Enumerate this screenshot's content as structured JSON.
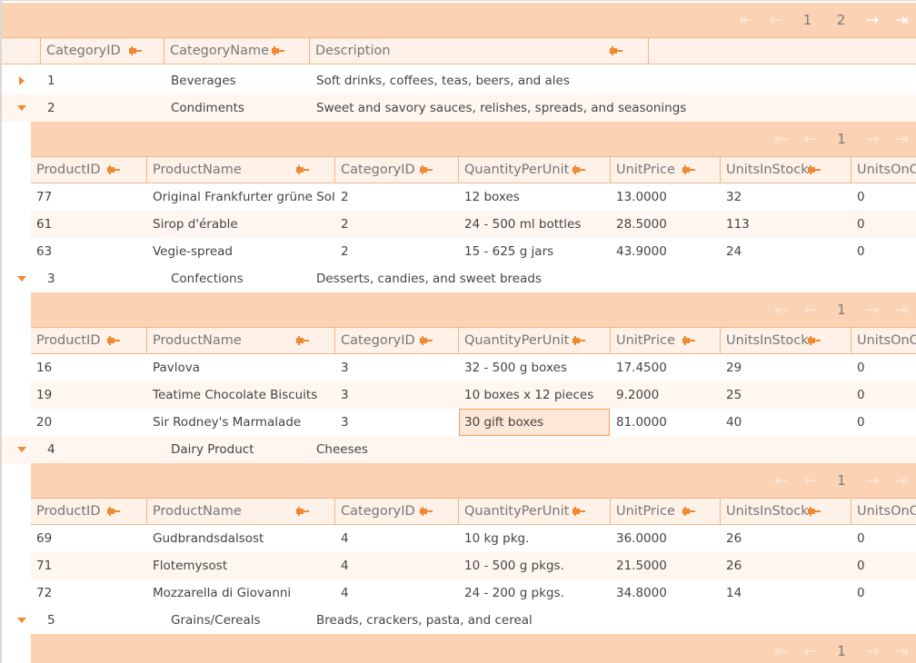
{
  "main_pager": {
    "pages": [
      "1",
      "2"
    ]
  },
  "master_headers": [
    "CategoryID",
    "CategoryName",
    "Description"
  ],
  "master_rows": [
    {
      "id": "1",
      "name": "Beverages",
      "description": "Soft drinks, coffees, teas, beers, and ales",
      "expanded": false
    },
    {
      "id": "2",
      "name": "Condiments",
      "description": "Sweet and savory sauces, relishes, spreads, and seasonings",
      "expanded": true
    },
    {
      "id": "3",
      "name": "Confections",
      "description": "Desserts, candies, and sweet breads",
      "expanded": true
    },
    {
      "id": "4",
      "name": "Dairy Product",
      "description": "Cheeses",
      "expanded": true
    },
    {
      "id": "5",
      "name": "Grains/Cereals",
      "description": "Breads, crackers, pasta, and cereal",
      "expanded": true
    }
  ],
  "detail_headers": [
    "ProductID",
    "ProductName",
    "CategoryID",
    "QuantityPerUnit",
    "UnitPrice",
    "UnitsInStock",
    "UnitsOnOr"
  ],
  "detail_grids": [
    {
      "page": "1",
      "rows": [
        [
          "77",
          "Original Frankfurter grüne Soße",
          "2",
          "12 boxes",
          "13.0000",
          "32",
          "0"
        ],
        [
          "61",
          "Sirop d'érable",
          "2",
          "24 - 500 ml bottles",
          "28.5000",
          "113",
          "0"
        ],
        [
          "63",
          "Vegie-spread",
          "2",
          "15 - 625 g jars",
          "43.9000",
          "24",
          "0"
        ]
      ]
    },
    {
      "page": "1",
      "rows": [
        [
          "16",
          "Pavlova",
          "3",
          "32 - 500 g boxes",
          "17.4500",
          "29",
          "0"
        ],
        [
          "19",
          "Teatime Chocolate Biscuits",
          "3",
          "10 boxes x 12 pieces",
          "9.2000",
          "25",
          "0"
        ],
        [
          "20",
          "Sir Rodney's Marmalade",
          "3",
          "30 gift boxes",
          "81.0000",
          "40",
          "0"
        ]
      ]
    },
    {
      "page": "1",
      "rows": [
        [
          "69",
          "Gudbrandsdalsost",
          "4",
          "10 kg pkg.",
          "36.0000",
          "26",
          "0"
        ],
        [
          "71",
          "Flotemysost",
          "4",
          "10 - 500 g pkgs.",
          "21.5000",
          "26",
          "0"
        ],
        [
          "72",
          "Mozzarella di Giovanni",
          "4",
          "24 - 200 g pkgs.",
          "34.8000",
          "14",
          "0"
        ]
      ]
    },
    {
      "page": "1",
      "rows": []
    }
  ],
  "selected_cell": {
    "grid": 1,
    "row": 2,
    "col": 3
  },
  "colors": {
    "pager_bg": "#fcd2b4",
    "header_bg": "#fdf1e8",
    "accent": "#ef8a33",
    "alt_row": "#fff6f0",
    "selected_cell": "#fde7d6"
  }
}
